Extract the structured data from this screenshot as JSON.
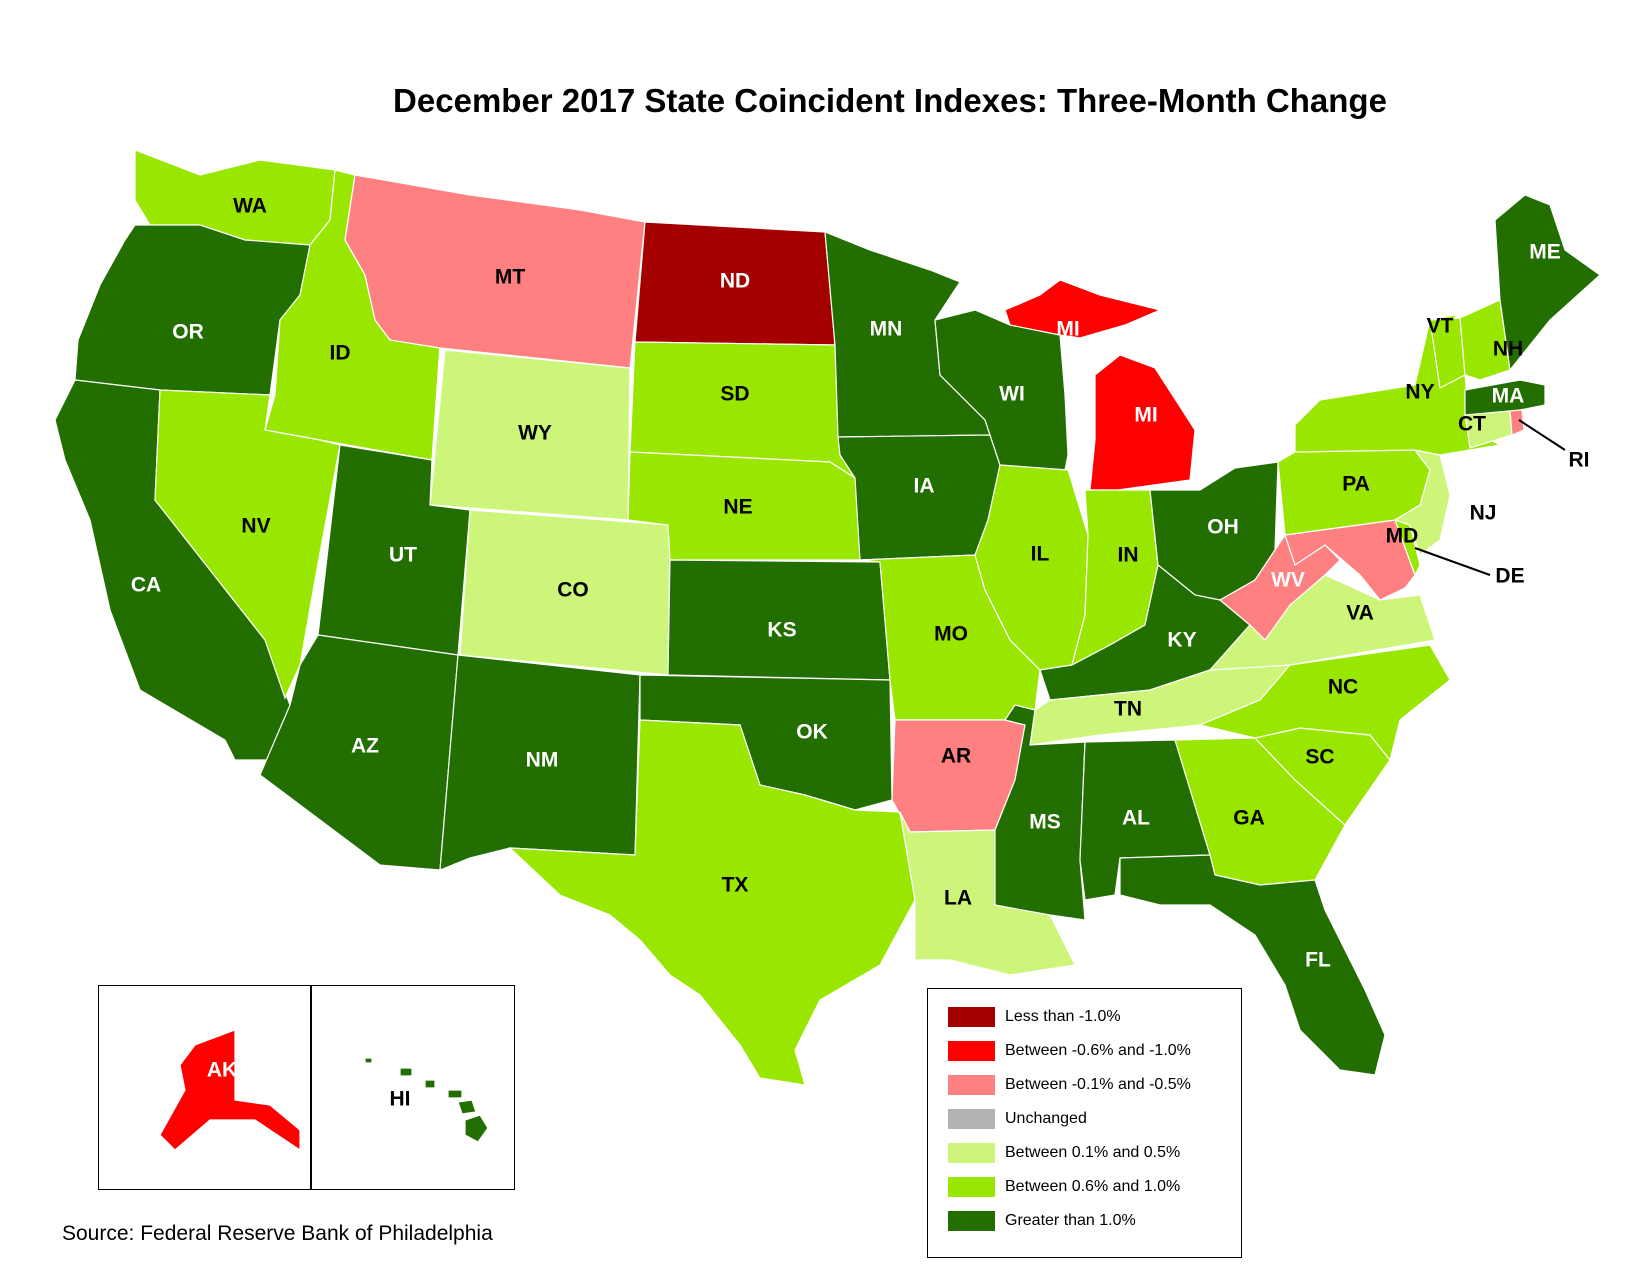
{
  "title": "December 2017 State Coincident Indexes: Three-Month Change",
  "source": "Source: Federal Reserve Bank of Philadelphia",
  "legend": [
    {
      "key": "lt_neg1",
      "label": "Less than -1.0%",
      "color": "#a50000"
    },
    {
      "key": "neg06_neg1",
      "label": "Between -0.6% and -1.0%",
      "color": "#ff0000"
    },
    {
      "key": "neg01_neg05",
      "label": "Between -0.1% and -0.5%",
      "color": "#ff8080"
    },
    {
      "key": "unchanged",
      "label": "Unchanged",
      "color": "#b2b2b2"
    },
    {
      "key": "p01_p05",
      "label": "Between 0.1% and 0.5%",
      "color": "#ccf57a"
    },
    {
      "key": "p06_p1",
      "label": "Between 0.6% and 1.0%",
      "color": "#99e600"
    },
    {
      "key": "gt_1",
      "label": "Greater than 1.0%",
      "color": "#226e00"
    }
  ],
  "states": [
    {
      "abbr": "WA",
      "cat": "p06_p1"
    },
    {
      "abbr": "OR",
      "cat": "gt_1"
    },
    {
      "abbr": "CA",
      "cat": "gt_1"
    },
    {
      "abbr": "ID",
      "cat": "p06_p1"
    },
    {
      "abbr": "NV",
      "cat": "p06_p1"
    },
    {
      "abbr": "MT",
      "cat": "neg01_neg05"
    },
    {
      "abbr": "WY",
      "cat": "p01_p05"
    },
    {
      "abbr": "UT",
      "cat": "gt_1"
    },
    {
      "abbr": "AZ",
      "cat": "gt_1"
    },
    {
      "abbr": "CO",
      "cat": "p01_p05"
    },
    {
      "abbr": "NM",
      "cat": "gt_1"
    },
    {
      "abbr": "ND",
      "cat": "lt_neg1"
    },
    {
      "abbr": "SD",
      "cat": "p06_p1"
    },
    {
      "abbr": "NE",
      "cat": "p06_p1"
    },
    {
      "abbr": "KS",
      "cat": "gt_1"
    },
    {
      "abbr": "OK",
      "cat": "gt_1"
    },
    {
      "abbr": "TX",
      "cat": "p06_p1"
    },
    {
      "abbr": "MN",
      "cat": "gt_1"
    },
    {
      "abbr": "IA",
      "cat": "gt_1"
    },
    {
      "abbr": "MO",
      "cat": "p06_p1"
    },
    {
      "abbr": "AR",
      "cat": "neg01_neg05"
    },
    {
      "abbr": "LA",
      "cat": "p01_p05"
    },
    {
      "abbr": "WI",
      "cat": "gt_1"
    },
    {
      "abbr": "IL",
      "cat": "p06_p1"
    },
    {
      "abbr": "MI",
      "cat": "neg06_neg1"
    },
    {
      "abbr": "IN",
      "cat": "p06_p1"
    },
    {
      "abbr": "OH",
      "cat": "gt_1"
    },
    {
      "abbr": "KY",
      "cat": "gt_1"
    },
    {
      "abbr": "TN",
      "cat": "p01_p05"
    },
    {
      "abbr": "MS",
      "cat": "gt_1"
    },
    {
      "abbr": "AL",
      "cat": "gt_1"
    },
    {
      "abbr": "GA",
      "cat": "p06_p1"
    },
    {
      "abbr": "FL",
      "cat": "gt_1"
    },
    {
      "abbr": "SC",
      "cat": "p06_p1"
    },
    {
      "abbr": "NC",
      "cat": "p06_p1"
    },
    {
      "abbr": "VA",
      "cat": "p01_p05"
    },
    {
      "abbr": "WV",
      "cat": "neg01_neg05"
    },
    {
      "abbr": "MD",
      "cat": "neg01_neg05"
    },
    {
      "abbr": "DE",
      "cat": "p06_p1"
    },
    {
      "abbr": "PA",
      "cat": "p06_p1"
    },
    {
      "abbr": "NJ",
      "cat": "p01_p05"
    },
    {
      "abbr": "NY",
      "cat": "p06_p1"
    },
    {
      "abbr": "CT",
      "cat": "p01_p05"
    },
    {
      "abbr": "RI",
      "cat": "neg01_neg05"
    },
    {
      "abbr": "MA",
      "cat": "gt_1"
    },
    {
      "abbr": "VT",
      "cat": "p06_p1"
    },
    {
      "abbr": "NH",
      "cat": "p06_p1"
    },
    {
      "abbr": "ME",
      "cat": "gt_1"
    },
    {
      "abbr": "AK",
      "cat": "neg06_neg1"
    },
    {
      "abbr": "HI",
      "cat": "gt_1"
    }
  ]
}
